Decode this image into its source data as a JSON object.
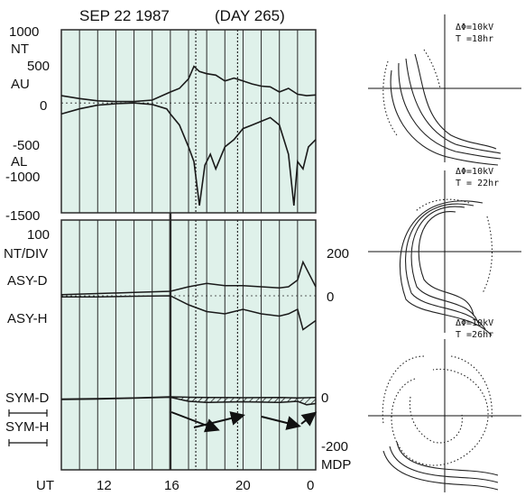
{
  "header": {
    "date": "SEP 22 1987",
    "day": "(DAY 265)"
  },
  "colors": {
    "panel_bg": "#dff1ea",
    "grid": "#2b2b2b",
    "curve": "#1a1a1a"
  },
  "chart_data": [
    {
      "type": "line",
      "id": "auroral-electrojet",
      "units_label": "NT",
      "yticks": [
        "1000",
        "500",
        "0",
        "-500",
        "-1000",
        "-1500"
      ],
      "ylim": [
        -1500,
        1000
      ],
      "xlim": [
        10,
        24
      ],
      "series_labels": {
        "au": "AU",
        "al": "AL"
      },
      "series": [
        {
          "name": "AU",
          "x": [
            10,
            11,
            12,
            13,
            14,
            15,
            16,
            16.5,
            17,
            17.3,
            17.6,
            18,
            18.5,
            19,
            19.5,
            20,
            20.5,
            21,
            21.5,
            22,
            22.5,
            23,
            23.5,
            24
          ],
          "y": [
            100,
            60,
            30,
            20,
            20,
            40,
            150,
            200,
            330,
            500,
            430,
            400,
            380,
            300,
            340,
            300,
            260,
            230,
            220,
            150,
            200,
            120,
            100,
            110
          ]
        },
        {
          "name": "AL",
          "x": [
            10,
            11,
            12,
            13,
            14,
            15,
            15.8,
            16,
            16.5,
            17,
            17.3,
            17.6,
            17.9,
            18.2,
            18.5,
            19,
            19.5,
            20,
            20.5,
            21,
            21.5,
            22,
            22.5,
            22.8,
            23,
            23.3,
            23.6,
            24
          ],
          "y": [
            -150,
            -80,
            -30,
            -10,
            0,
            -20,
            -80,
            -150,
            -300,
            -600,
            -800,
            -1400,
            -850,
            -700,
            -900,
            -600,
            -500,
            -350,
            -300,
            -250,
            -200,
            -300,
            -700,
            -1400,
            -800,
            -900,
            -600,
            -500
          ]
        }
      ]
    },
    {
      "type": "line",
      "id": "asymmetric-symmetric-indices",
      "units_label": "NT/DIV",
      "scale_label": "100",
      "labels": {
        "asy_d": "ASY-D",
        "asy_h": "ASY-H",
        "sym_d": "SYM-D",
        "sym_h": "SYM-H"
      },
      "right_ticks": [
        "200",
        "0",
        "0",
        "-200"
      ],
      "right_unit": "MDP",
      "xlabel": "UT",
      "xticks": [
        "12",
        "16",
        "20",
        "0"
      ],
      "xlim": [
        10,
        24
      ],
      "series": [
        {
          "name": "ASY-D",
          "x": [
            10,
            12,
            14,
            16,
            17,
            18,
            19,
            20,
            21,
            22,
            22.5,
            23,
            23.3,
            24
          ],
          "y": [
            5,
            10,
            15,
            20,
            40,
            55,
            45,
            45,
            40,
            35,
            40,
            70,
            150,
            40
          ]
        },
        {
          "name": "ASY-H",
          "x": [
            10,
            12,
            14,
            16,
            17,
            18,
            19,
            20,
            21,
            22,
            22.5,
            23,
            23.3,
            24
          ],
          "y": [
            -5,
            -5,
            -2,
            0,
            -40,
            -70,
            -80,
            -60,
            -80,
            -90,
            -80,
            -60,
            -150,
            -110
          ]
        },
        {
          "name": "SYM-D",
          "x": [
            10,
            12,
            14,
            16,
            17,
            18,
            20,
            22,
            23,
            23.5,
            24
          ],
          "y": [
            -10,
            -8,
            -5,
            0,
            -2,
            -3,
            -4,
            -3,
            -5,
            -4,
            -3
          ]
        },
        {
          "name": "SYM-H",
          "x": [
            10,
            12,
            14,
            16,
            17,
            18,
            20,
            22,
            23,
            23.5,
            24
          ],
          "y": [
            -12,
            -10,
            -6,
            -2,
            -20,
            -25,
            -22,
            -25,
            -20,
            -35,
            -30
          ]
        }
      ]
    },
    {
      "type": "diagram",
      "id": "magnetosphere-contours",
      "panels": [
        {
          "label_potential": "ΔΦ=10kV",
          "label_time": "T =18hr"
        },
        {
          "label_potential": "ΔΦ=10kV",
          "label_time": "T = 22hr"
        },
        {
          "label_potential": "ΔΦ=10kV",
          "label_time": "T =26hr"
        }
      ]
    }
  ]
}
